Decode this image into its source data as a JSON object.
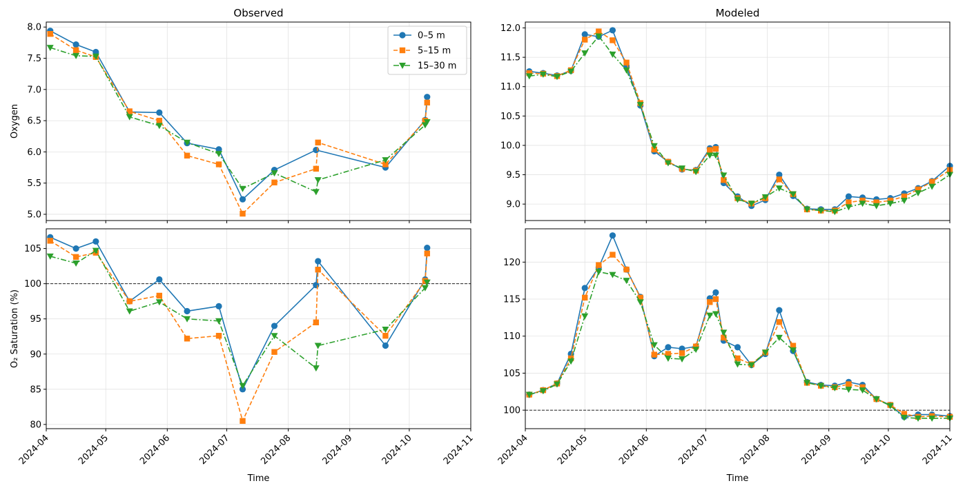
{
  "chart_data": [
    {
      "type": "line",
      "title": "Observed",
      "xlabel": "",
      "ylabel": "Oxygen",
      "ylim": [
        4.9,
        8.08
      ],
      "yticks": [
        5.0,
        5.5,
        6.0,
        6.5,
        7.0,
        7.5,
        8.0
      ],
      "ytick_labels": [
        "5.0",
        "5.5",
        "6.0",
        "6.5",
        "7.0",
        "7.5",
        "8.0"
      ],
      "grid": true,
      "legend": "top-right",
      "series": [
        {
          "name": "0–5 m",
          "color": "#1f77b4",
          "marker": "circle",
          "linestyle": "solid",
          "x": [
            "2024-04-03",
            "2024-04-16",
            "2024-04-26",
            "2024-05-13",
            "2024-05-28",
            "2024-06-11",
            "2024-06-27",
            "2024-07-09",
            "2024-07-25",
            "2024-08-15",
            "2024-09-19",
            "2024-10-09",
            "2024-10-10"
          ],
          "y": [
            7.94,
            7.72,
            7.6,
            6.64,
            6.63,
            6.14,
            6.04,
            5.24,
            5.71,
            6.03,
            5.75,
            6.51,
            6.88
          ]
        },
        {
          "name": "5–15 m",
          "color": "#ff7f0e",
          "marker": "square",
          "linestyle": "dashed",
          "x": [
            "2024-04-03",
            "2024-04-16",
            "2024-04-26",
            "2024-05-13",
            "2024-05-28",
            "2024-06-11",
            "2024-06-27",
            "2024-07-09",
            "2024-07-25",
            "2024-08-15",
            "2024-08-16",
            "2024-09-19",
            "2024-10-09",
            "2024-10-10"
          ],
          "y": [
            7.89,
            7.63,
            7.52,
            6.65,
            6.5,
            5.94,
            5.8,
            5.01,
            5.51,
            5.73,
            6.15,
            5.8,
            6.5,
            6.79
          ]
        },
        {
          "name": "15–30 m",
          "color": "#2ca02c",
          "marker": "triangle-down",
          "linestyle": "dashdot",
          "x": [
            "2024-04-03",
            "2024-04-16",
            "2024-04-26",
            "2024-05-13",
            "2024-05-28",
            "2024-06-11",
            "2024-06-27",
            "2024-07-09",
            "2024-07-25",
            "2024-08-15",
            "2024-08-16",
            "2024-09-19",
            "2024-10-09",
            "2024-10-10"
          ],
          "y": [
            7.67,
            7.54,
            7.53,
            6.56,
            6.42,
            6.15,
            5.97,
            5.41,
            5.66,
            5.36,
            5.55,
            5.87,
            6.43,
            6.48
          ]
        }
      ]
    },
    {
      "type": "line",
      "title": "Modeled",
      "xlabel": "",
      "ylabel": "",
      "ylim": [
        8.72,
        12.1
      ],
      "yticks": [
        9.0,
        9.5,
        10.0,
        10.5,
        11.0,
        11.5,
        12.0
      ],
      "ytick_labels": [
        "9.0",
        "9.5",
        "10.0",
        "10.5",
        "11.0",
        "11.5",
        "12.0"
      ],
      "grid": true,
      "series": [
        {
          "name": "0–5 m",
          "color": "#1f77b4",
          "marker": "circle",
          "linestyle": "solid",
          "x": [
            "2024-04-03",
            "2024-04-10",
            "2024-04-17",
            "2024-04-24",
            "2024-05-01",
            "2024-05-08",
            "2024-05-15",
            "2024-05-22",
            "2024-05-29",
            "2024-06-05",
            "2024-06-12",
            "2024-06-19",
            "2024-06-26",
            "2024-07-03",
            "2024-07-06",
            "2024-07-10",
            "2024-07-17",
            "2024-07-24",
            "2024-07-31",
            "2024-08-07",
            "2024-08-14",
            "2024-08-21",
            "2024-08-28",
            "2024-09-04",
            "2024-09-11",
            "2024-09-18",
            "2024-09-25",
            "2024-10-02",
            "2024-10-09",
            "2024-10-16",
            "2024-10-23",
            "2024-11-01"
          ],
          "y": [
            11.26,
            11.23,
            11.19,
            11.27,
            11.89,
            11.85,
            11.96,
            11.35,
            10.68,
            9.9,
            9.72,
            9.59,
            9.58,
            9.95,
            9.97,
            9.36,
            9.13,
            8.97,
            9.07,
            9.5,
            9.14,
            8.92,
            8.91,
            8.91,
            9.13,
            9.11,
            9.08,
            9.1,
            9.18,
            9.27,
            9.39,
            9.65
          ]
        },
        {
          "name": "5–15 m",
          "color": "#ff7f0e",
          "marker": "square",
          "linestyle": "dashed",
          "x": [
            "2024-04-03",
            "2024-04-10",
            "2024-04-17",
            "2024-04-24",
            "2024-05-01",
            "2024-05-08",
            "2024-05-15",
            "2024-05-22",
            "2024-05-29",
            "2024-06-05",
            "2024-06-12",
            "2024-06-19",
            "2024-06-26",
            "2024-07-03",
            "2024-07-06",
            "2024-07-10",
            "2024-07-17",
            "2024-07-24",
            "2024-07-31",
            "2024-08-07",
            "2024-08-14",
            "2024-08-21",
            "2024-08-28",
            "2024-09-04",
            "2024-09-11",
            "2024-09-18",
            "2024-09-25",
            "2024-10-02",
            "2024-10-09",
            "2024-10-16",
            "2024-10-23",
            "2024-11-01"
          ],
          "y": [
            11.23,
            11.22,
            11.18,
            11.28,
            11.8,
            11.94,
            11.79,
            11.41,
            10.72,
            9.93,
            9.72,
            9.6,
            9.57,
            9.92,
            9.94,
            9.41,
            9.1,
            9.01,
            9.1,
            9.42,
            9.17,
            8.91,
            8.89,
            8.89,
            9.03,
            9.06,
            9.03,
            9.06,
            9.13,
            9.25,
            9.38,
            9.58
          ]
        },
        {
          "name": "15–30 m",
          "color": "#2ca02c",
          "marker": "triangle-down",
          "linestyle": "dashdot",
          "x": [
            "2024-04-03",
            "2024-04-10",
            "2024-04-17",
            "2024-04-24",
            "2024-05-01",
            "2024-05-08",
            "2024-05-15",
            "2024-05-22",
            "2024-05-29",
            "2024-06-05",
            "2024-06-12",
            "2024-06-19",
            "2024-06-26",
            "2024-07-03",
            "2024-07-06",
            "2024-07-10",
            "2024-07-17",
            "2024-07-24",
            "2024-07-31",
            "2024-08-07",
            "2024-08-14",
            "2024-08-21",
            "2024-08-28",
            "2024-09-04",
            "2024-09-11",
            "2024-09-18",
            "2024-09-25",
            "2024-10-02",
            "2024-10-09",
            "2024-10-16",
            "2024-10-23",
            "2024-11-01"
          ],
          "y": [
            11.18,
            11.21,
            11.17,
            11.26,
            11.57,
            11.86,
            11.55,
            11.28,
            10.69,
            9.99,
            9.7,
            9.61,
            9.55,
            9.83,
            9.83,
            9.49,
            9.08,
            9.01,
            9.12,
            9.27,
            9.17,
            8.91,
            8.89,
            8.87,
            8.95,
            9.01,
            8.97,
            9.01,
            9.06,
            9.19,
            9.3,
            9.5
          ]
        }
      ]
    },
    {
      "type": "line",
      "title": "",
      "xlabel": "Time",
      "ylabel": "O₂ Saturation (%)",
      "ylim": [
        79.4,
        107.8
      ],
      "yticks": [
        80,
        85,
        90,
        95,
        100,
        105
      ],
      "ytick_labels": [
        "80",
        "85",
        "90",
        "95",
        "100",
        "105"
      ],
      "hline": 100,
      "grid": true,
      "series": [
        {
          "name": "0–5 m",
          "color": "#1f77b4",
          "marker": "circle",
          "linestyle": "solid",
          "x": [
            "2024-04-03",
            "2024-04-16",
            "2024-04-26",
            "2024-05-13",
            "2024-05-28",
            "2024-06-11",
            "2024-06-27",
            "2024-07-09",
            "2024-07-25",
            "2024-08-15",
            "2024-08-16",
            "2024-09-19",
            "2024-10-09",
            "2024-10-10"
          ],
          "y": [
            106.6,
            105.0,
            106.0,
            97.5,
            100.6,
            96.1,
            96.8,
            85.0,
            94.0,
            99.8,
            103.2,
            91.2,
            100.6,
            105.1
          ]
        },
        {
          "name": "5–15 m",
          "color": "#ff7f0e",
          "marker": "square",
          "linestyle": "dashed",
          "x": [
            "2024-04-03",
            "2024-04-16",
            "2024-04-26",
            "2024-05-13",
            "2024-05-28",
            "2024-06-11",
            "2024-06-27",
            "2024-07-09",
            "2024-07-25",
            "2024-08-15",
            "2024-08-16",
            "2024-09-19",
            "2024-10-09",
            "2024-10-10"
          ],
          "y": [
            106.1,
            103.8,
            104.4,
            97.5,
            98.3,
            92.2,
            92.6,
            80.5,
            90.3,
            94.5,
            102.0,
            92.6,
            100.4,
            104.3
          ]
        },
        {
          "name": "15–30 m",
          "color": "#2ca02c",
          "marker": "triangle-down",
          "linestyle": "dashdot",
          "x": [
            "2024-04-03",
            "2024-04-16",
            "2024-04-26",
            "2024-05-13",
            "2024-05-28",
            "2024-06-11",
            "2024-06-27",
            "2024-07-09",
            "2024-07-25",
            "2024-08-15",
            "2024-08-16",
            "2024-09-19",
            "2024-10-09",
            "2024-10-10"
          ],
          "y": [
            103.9,
            102.9,
            104.7,
            96.1,
            97.4,
            95.0,
            94.7,
            85.5,
            92.6,
            88.0,
            91.2,
            93.5,
            99.4,
            100.2
          ]
        }
      ]
    },
    {
      "type": "line",
      "title": "",
      "xlabel": "Time",
      "ylabel": "",
      "ylim": [
        97.5,
        124.5
      ],
      "yticks": [
        100,
        105,
        110,
        115,
        120
      ],
      "ytick_labels": [
        "100",
        "105",
        "110",
        "115",
        "120"
      ],
      "hline": 100,
      "grid": true,
      "series": [
        {
          "name": "0–5 m",
          "color": "#1f77b4",
          "marker": "circle",
          "linestyle": "solid",
          "x": [
            "2024-04-03",
            "2024-04-10",
            "2024-04-17",
            "2024-04-24",
            "2024-05-01",
            "2024-05-08",
            "2024-05-15",
            "2024-05-22",
            "2024-05-29",
            "2024-06-05",
            "2024-06-12",
            "2024-06-19",
            "2024-06-26",
            "2024-07-03",
            "2024-07-06",
            "2024-07-10",
            "2024-07-17",
            "2024-07-24",
            "2024-07-31",
            "2024-08-07",
            "2024-08-14",
            "2024-08-21",
            "2024-08-28",
            "2024-09-04",
            "2024-09-11",
            "2024-09-18",
            "2024-09-25",
            "2024-10-02",
            "2024-10-09",
            "2024-10-16",
            "2024-10-23",
            "2024-11-01"
          ],
          "y": [
            102.1,
            102.7,
            103.6,
            107.6,
            116.5,
            119.3,
            123.6,
            119.0,
            115.3,
            107.3,
            108.5,
            108.3,
            108.6,
            115.1,
            115.9,
            109.4,
            108.5,
            106.1,
            107.6,
            113.5,
            108.0,
            103.8,
            103.4,
            103.3,
            103.8,
            103.4,
            101.5,
            100.7,
            99.1,
            99.4,
            99.4,
            99.2
          ]
        },
        {
          "name": "5–15 m",
          "color": "#ff7f0e",
          "marker": "square",
          "linestyle": "dashed",
          "x": [
            "2024-04-03",
            "2024-04-10",
            "2024-04-17",
            "2024-04-24",
            "2024-05-01",
            "2024-05-08",
            "2024-05-15",
            "2024-05-22",
            "2024-05-29",
            "2024-06-05",
            "2024-06-12",
            "2024-06-19",
            "2024-06-26",
            "2024-07-03",
            "2024-07-06",
            "2024-07-10",
            "2024-07-17",
            "2024-07-24",
            "2024-07-31",
            "2024-08-07",
            "2024-08-14",
            "2024-08-21",
            "2024-08-28",
            "2024-09-04",
            "2024-09-11",
            "2024-09-18",
            "2024-09-25",
            "2024-10-02",
            "2024-10-09",
            "2024-10-16",
            "2024-10-23",
            "2024-11-01"
          ],
          "y": [
            102.1,
            102.7,
            103.6,
            107.0,
            115.2,
            119.6,
            121.0,
            119.0,
            115.2,
            107.5,
            107.6,
            107.7,
            108.6,
            114.6,
            115.0,
            109.8,
            107.0,
            106.2,
            107.8,
            111.9,
            108.7,
            103.7,
            103.3,
            103.1,
            103.5,
            103.1,
            101.5,
            100.7,
            99.5,
            99.1,
            99.2,
            99.1
          ]
        },
        {
          "name": "15–30 m",
          "color": "#2ca02c",
          "marker": "triangle-down",
          "linestyle": "dashdot",
          "x": [
            "2024-04-03",
            "2024-04-10",
            "2024-04-17",
            "2024-04-24",
            "2024-05-01",
            "2024-05-08",
            "2024-05-15",
            "2024-05-22",
            "2024-05-29",
            "2024-06-05",
            "2024-06-12",
            "2024-06-19",
            "2024-06-26",
            "2024-07-03",
            "2024-07-06",
            "2024-07-10",
            "2024-07-17",
            "2024-07-24",
            "2024-07-31",
            "2024-08-07",
            "2024-08-14",
            "2024-08-21",
            "2024-08-28",
            "2024-09-04",
            "2024-09-11",
            "2024-09-18",
            "2024-09-25",
            "2024-10-02",
            "2024-10-09",
            "2024-10-16",
            "2024-10-23",
            "2024-11-01"
          ],
          "y": [
            102.1,
            102.6,
            103.5,
            106.6,
            112.7,
            118.7,
            118.3,
            117.5,
            114.6,
            108.8,
            107.0,
            106.9,
            108.2,
            112.8,
            113.0,
            110.5,
            106.2,
            106.1,
            107.8,
            109.8,
            108.1,
            103.7,
            103.3,
            103.0,
            102.8,
            102.7,
            101.5,
            100.6,
            99.0,
            98.9,
            98.9,
            98.9
          ]
        }
      ]
    }
  ],
  "shared_x": {
    "xlim": [
      "2024-04-01",
      "2024-11-01"
    ],
    "ticks": [
      "2024-04-01",
      "2024-05-01",
      "2024-06-01",
      "2024-07-01",
      "2024-08-01",
      "2024-09-01",
      "2024-10-01",
      "2024-11-01"
    ],
    "tick_labels": [
      "2024-04",
      "2024-05",
      "2024-06",
      "2024-07",
      "2024-08",
      "2024-09",
      "2024-10",
      "2024-11"
    ]
  }
}
